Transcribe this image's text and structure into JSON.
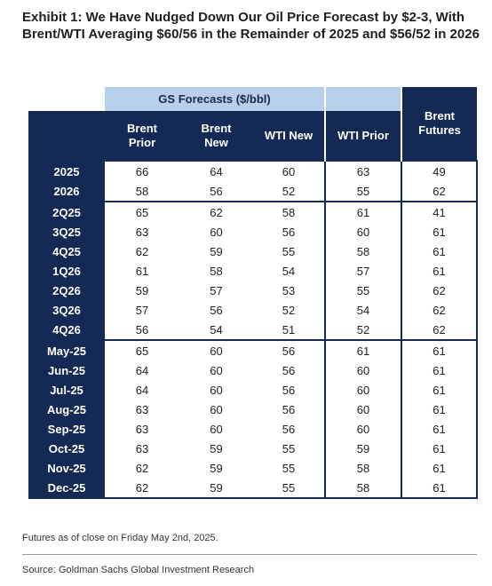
{
  "title": "Exhibit 1: We Have Nudged Down Our Oil Price Forecast by $2-3, With Brent/WTI Averaging $60/56 in the Remainder of 2025 and $56/52 in 2026",
  "table": {
    "group_header": "GS Forecasts ($/bbl)",
    "columns": [
      "Brent Prior",
      "Brent New",
      "WTI New",
      "WTI Prior",
      "Brent Futures"
    ],
    "groups": [
      {
        "rows": [
          {
            "label": "2025",
            "values": [
              "66",
              "64",
              "60",
              "63",
              "49"
            ]
          },
          {
            "label": "2026",
            "values": [
              "58",
              "56",
              "52",
              "55",
              "62"
            ]
          }
        ]
      },
      {
        "rows": [
          {
            "label": "2Q25",
            "values": [
              "65",
              "62",
              "58",
              "61",
              "41"
            ]
          },
          {
            "label": "3Q25",
            "values": [
              "63",
              "60",
              "56",
              "60",
              "61"
            ]
          },
          {
            "label": "4Q25",
            "values": [
              "62",
              "59",
              "55",
              "58",
              "61"
            ]
          },
          {
            "label": "1Q26",
            "values": [
              "61",
              "58",
              "54",
              "57",
              "61"
            ]
          },
          {
            "label": "2Q26",
            "values": [
              "59",
              "57",
              "53",
              "55",
              "62"
            ]
          },
          {
            "label": "3Q26",
            "values": [
              "57",
              "56",
              "52",
              "54",
              "62"
            ]
          },
          {
            "label": "4Q26",
            "values": [
              "56",
              "54",
              "51",
              "52",
              "62"
            ]
          }
        ]
      },
      {
        "rows": [
          {
            "label": "May-25",
            "values": [
              "65",
              "60",
              "56",
              "61",
              "61"
            ]
          },
          {
            "label": "Jun-25",
            "values": [
              "64",
              "60",
              "56",
              "60",
              "61"
            ]
          },
          {
            "label": "Jul-25",
            "values": [
              "64",
              "60",
              "56",
              "60",
              "61"
            ]
          },
          {
            "label": "Aug-25",
            "values": [
              "63",
              "60",
              "56",
              "60",
              "61"
            ]
          },
          {
            "label": "Sep-25",
            "values": [
              "63",
              "60",
              "56",
              "60",
              "61"
            ]
          },
          {
            "label": "Oct-25",
            "values": [
              "63",
              "59",
              "55",
              "59",
              "61"
            ]
          },
          {
            "label": "Nov-25",
            "values": [
              "62",
              "59",
              "55",
              "58",
              "61"
            ]
          },
          {
            "label": "Dec-25",
            "values": [
              "62",
              "59",
              "55",
              "58",
              "61"
            ]
          }
        ]
      }
    ]
  },
  "note": "Futures as of close on Friday May 2nd, 2025.",
  "source": "Source: Goldman Sachs Global Investment Research",
  "colors": {
    "navy": "#142a54",
    "light_blue": "#b8d0ea"
  }
}
